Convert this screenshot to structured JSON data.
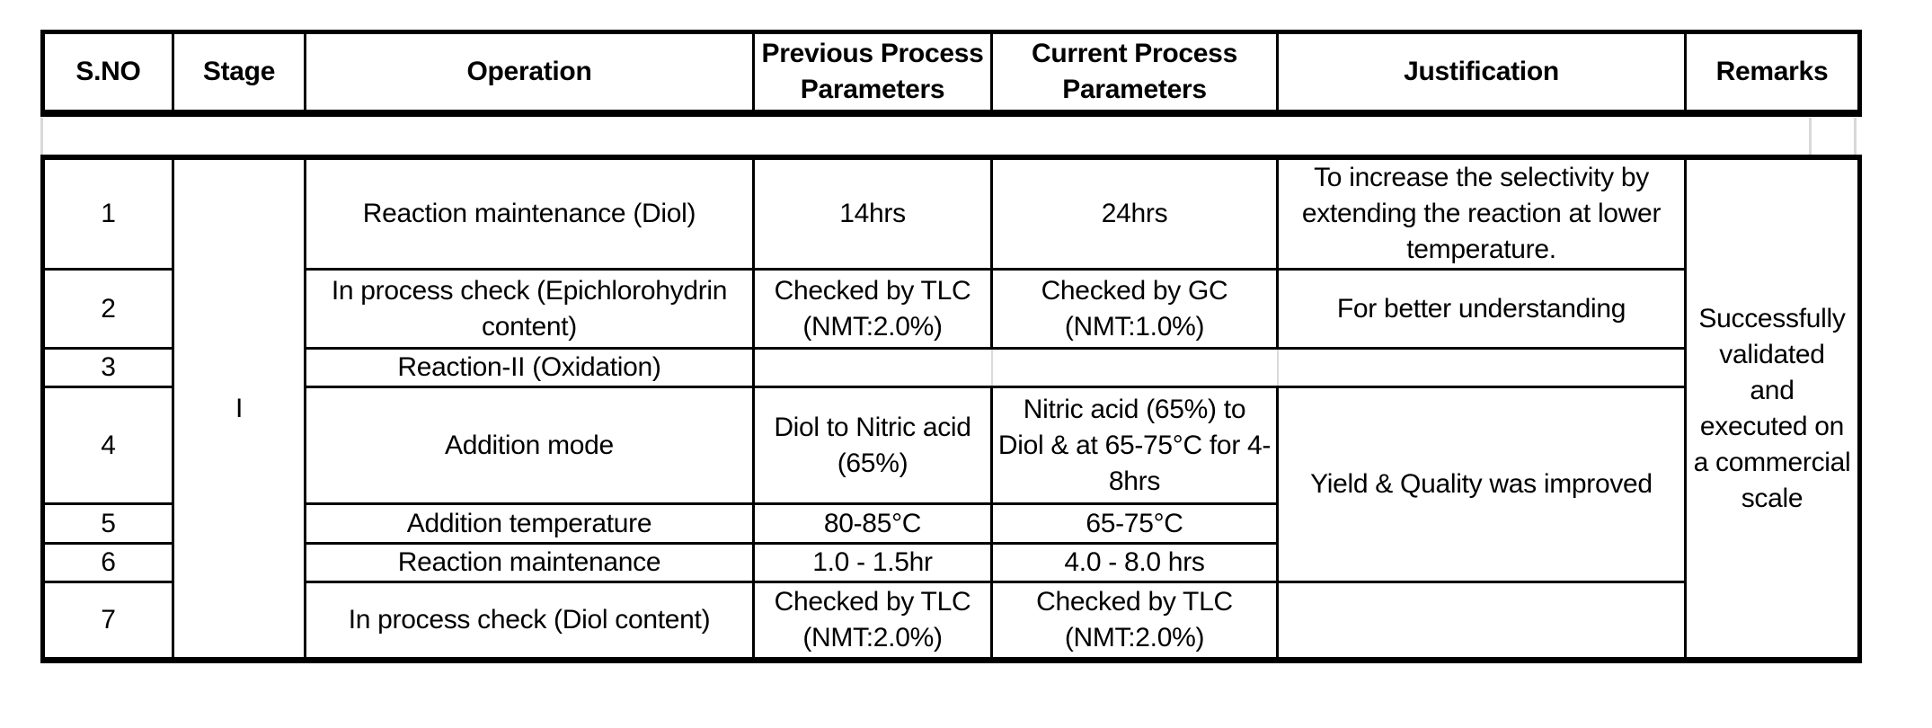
{
  "table": {
    "columns": [
      {
        "label": "S.NO"
      },
      {
        "label": "Stage"
      },
      {
        "label": "Operation"
      },
      {
        "label": "Previous Process\nParameters"
      },
      {
        "label": "Current Process\nParameters"
      },
      {
        "label": "Justification"
      },
      {
        "label": "Remarks"
      }
    ],
    "stage": "I",
    "remarks": "Successfully\nvalidated\nand\nexecuted on\na commercial\nscale",
    "rows": [
      {
        "sno": "1",
        "operation": "Reaction maintenance (Diol)",
        "previous": "14hrs",
        "current": "24hrs",
        "justification": "To increase the selectivity by\nextending the reaction at lower\ntemperature."
      },
      {
        "sno": "2",
        "operation": "In process check (Epichlorohydrin\ncontent)",
        "previous": "Checked by TLC\n(NMT:2.0%)",
        "current": "Checked by GC\n(NMT:1.0%)",
        "justification": "For better understanding"
      },
      {
        "sno": "3",
        "operation": "Reaction-II (Oxidation)",
        "previous": "",
        "current": "",
        "justification": ""
      },
      {
        "sno": "4",
        "operation": "Addition mode",
        "previous": "Diol to Nitric acid\n(65%)",
        "current": "Nitric acid (65%) to\nDiol & at 65-75°C for 4-\n8hrs",
        "justification": "Yield & Quality was improved"
      },
      {
        "sno": "5",
        "operation": "Addition temperature",
        "previous": "80-85°C",
        "current": "65-75°C"
      },
      {
        "sno": "6",
        "operation": "Reaction maintenance",
        "previous": "1.0 - 1.5hr",
        "current": "4.0 - 8.0 hrs"
      },
      {
        "sno": "7",
        "operation": "In process check (Diol content)",
        "previous": "Checked by TLC\n(NMT:2.0%)",
        "current": "Checked by TLC\n(NMT:2.0%)",
        "justification": ""
      }
    ]
  }
}
